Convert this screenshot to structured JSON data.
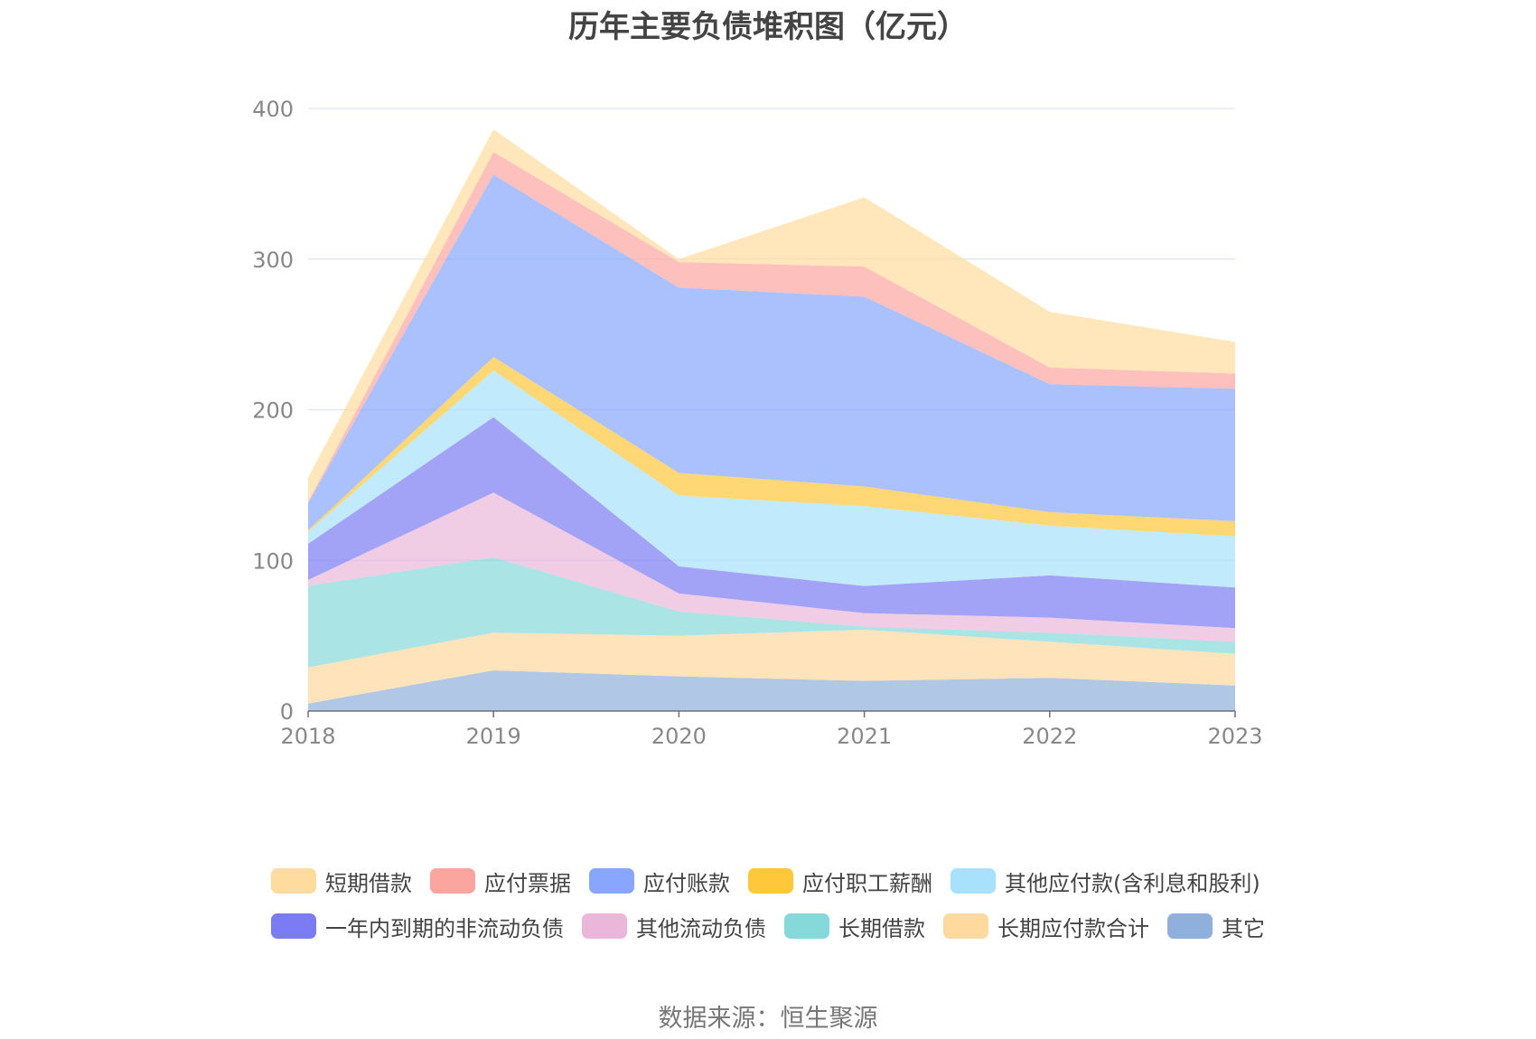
{
  "source_note": "数据来源：恒生聚源",
  "chart_data": {
    "type": "area",
    "stacked": true,
    "title": "历年主要负债堆积图（亿元）",
    "xlabel": "",
    "ylabel": "",
    "x": [
      "2018",
      "2019",
      "2020",
      "2021",
      "2022",
      "2023"
    ],
    "ylim": [
      0,
      400
    ],
    "yticks": [
      0,
      100,
      200,
      300,
      400
    ],
    "grid": true,
    "legend_position": "bottom",
    "series": [
      {
        "name": "其它",
        "color": "#8fafdc",
        "values": [
          5,
          27,
          23,
          20,
          22,
          17
        ]
      },
      {
        "name": "长期应付款合计",
        "color": "#ffd99e",
        "values": [
          24,
          25,
          27,
          34,
          24,
          21
        ]
      },
      {
        "name": "长期借款",
        "color": "#86d9d9",
        "values": [
          54,
          50,
          16,
          2,
          6,
          8
        ]
      },
      {
        "name": "其他流动负债",
        "color": "#eab6da",
        "values": [
          4,
          43,
          12,
          9,
          10,
          9
        ]
      },
      {
        "name": "一年内到期的非流动负债",
        "color": "#7b7cf3",
        "values": [
          24,
          50,
          18,
          18,
          28,
          27
        ]
      },
      {
        "name": "其他应付款(含利息和股利)",
        "color": "#a8e1fc",
        "values": [
          8,
          31,
          47,
          53,
          33,
          34
        ]
      },
      {
        "name": "应付职工薪酬",
        "color": "#ffc83a",
        "values": [
          1,
          9,
          15,
          13,
          9,
          10
        ]
      },
      {
        "name": "应付账款",
        "color": "#88a6fd",
        "values": [
          18,
          121,
          123,
          126,
          85,
          88
        ]
      },
      {
        "name": "应付票据",
        "color": "#fca59f",
        "values": [
          1,
          15,
          17,
          20,
          11,
          10
        ]
      },
      {
        "name": "短期借款",
        "color": "#ffdc9e",
        "values": [
          16,
          15,
          2,
          46,
          37,
          21
        ]
      }
    ],
    "legend_order": [
      "短期借款",
      "应付票据",
      "应付账款",
      "应付职工薪酬",
      "其他应付款(含利息和股利)",
      "一年内到期的非流动负债",
      "其他流动负债",
      "长期借款",
      "长期应付款合计",
      "其它"
    ]
  }
}
